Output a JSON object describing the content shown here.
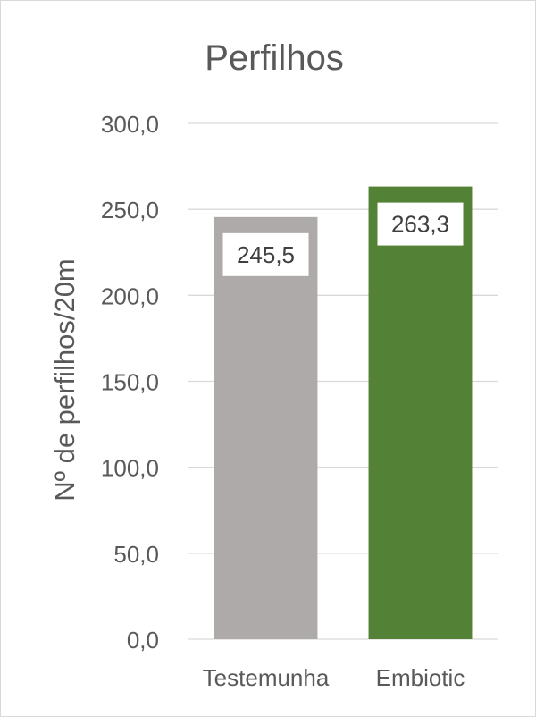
{
  "chart_data": {
    "type": "bar",
    "title": "Perfilhos",
    "ylabel": "Nº de perfilhos/20m",
    "xlabel": "",
    "categories": [
      "Testemunha",
      "Embiotic"
    ],
    "values": [
      245.5,
      263.3
    ],
    "value_labels": [
      "245,5",
      "263,3"
    ],
    "bar_colors": [
      "#aeaaaa",
      "#538135"
    ],
    "ylim": [
      0,
      300
    ],
    "yticks": [
      0,
      50,
      100,
      150,
      200,
      250,
      300
    ],
    "ytick_labels": [
      "0,0",
      "50,0",
      "100,0",
      "150,0",
      "200,0",
      "250,0",
      "300,0"
    ],
    "grid": true,
    "legend": "none"
  }
}
